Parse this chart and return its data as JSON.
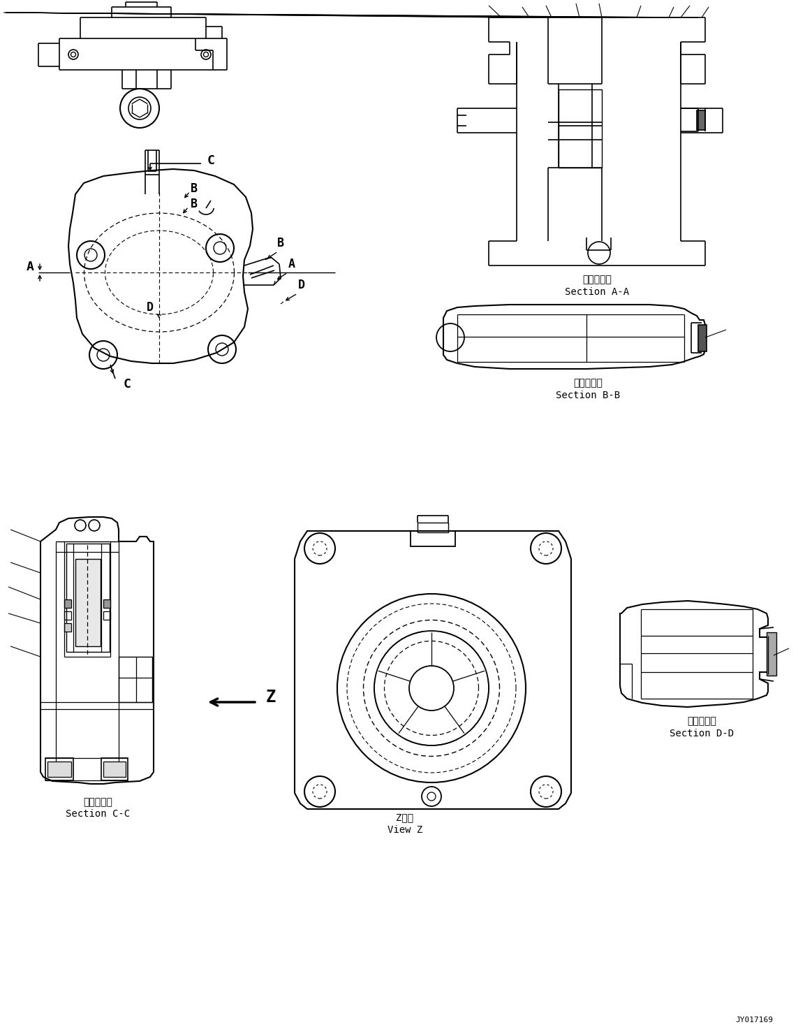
{
  "bg_color": "#ffffff",
  "fig_width": 11.63,
  "fig_height": 14.8,
  "dpi": 100,
  "section_aa_kanji": "断面Ａ－Ａ",
  "section_aa_en": "Section A-A",
  "section_bb_kanji": "断面Ｂ－Ｂ",
  "section_bb_en": "Section B-B",
  "section_cc_kanji": "断面Ｃ－Ｃ",
  "section_cc_en": "Section C-C",
  "section_dd_kanji": "断面Ｄ－Ｄ",
  "section_dd_en": "Section D-D",
  "view_z_kanji": "Z　視",
  "view_z_en": "View Z",
  "drawing_number": "JY017169",
  "lA": "A",
  "lB": "B",
  "lC": "C",
  "lD": "D",
  "lZ": "Z"
}
